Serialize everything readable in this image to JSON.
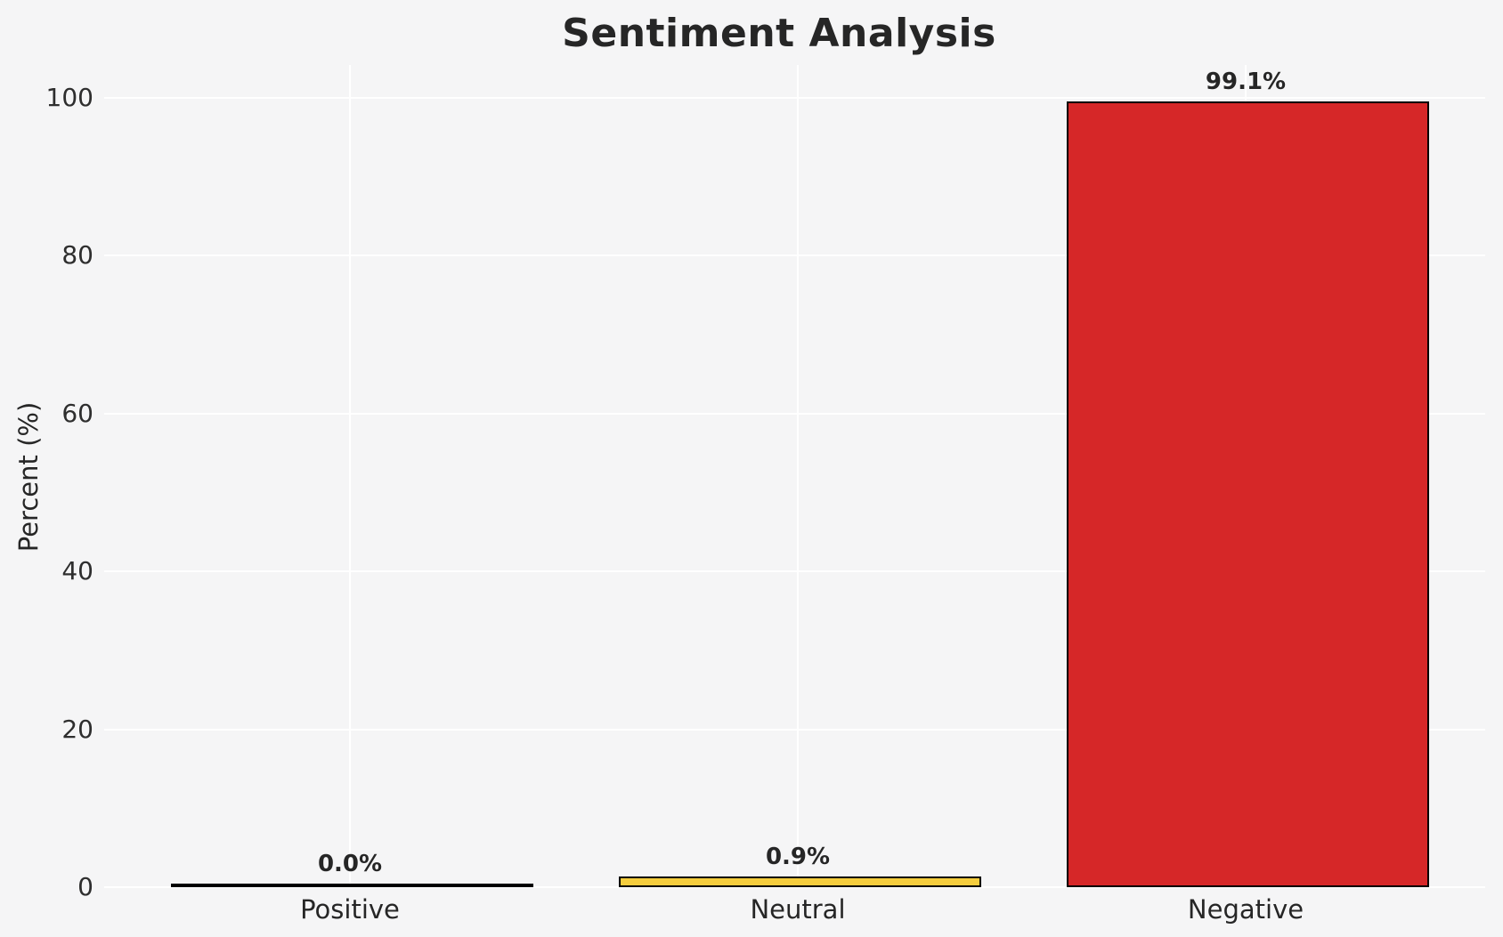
{
  "chart_data": {
    "type": "bar",
    "title": "Sentiment Analysis",
    "categories": [
      "Positive",
      "Neutral",
      "Negative"
    ],
    "values": [
      0.0,
      0.9,
      99.1
    ],
    "value_labels": [
      "0.0%",
      "0.9%",
      "99.1%"
    ],
    "series": [
      {
        "name": "Percent",
        "values": [
          0.0,
          0.9,
          99.1
        ]
      }
    ],
    "bar_colors": [
      "#2ca02c",
      "#f5cd3d",
      "#d62728"
    ],
    "bar_edge_color": "#000000",
    "xlabel": "",
    "ylabel": "Percent (%)",
    "ylim": [
      0,
      104
    ],
    "yticks": [
      0,
      20,
      40,
      60,
      80,
      100
    ],
    "grid": true,
    "legend": "none",
    "background_color": "#f5f5f6",
    "gridline_color": "#ffffff",
    "text_color": "#262626"
  }
}
